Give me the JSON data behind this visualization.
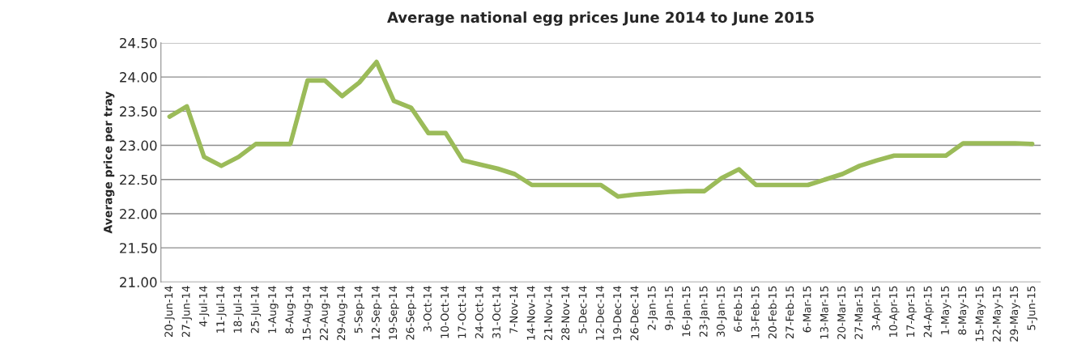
{
  "chart_data": {
    "type": "line",
    "title": "Average national egg prices June 2014 to June 2015",
    "ylabel": "Average price per tray",
    "categories": [
      "20-Jun-14",
      "27-Jun-14",
      "4-Jul-14",
      "11-Jul-14",
      "18-Jul-14",
      "25-Jul-14",
      "1-Aug-14",
      "8-Aug-14",
      "15-Aug-14",
      "22-Aug-14",
      "29-Aug-14",
      "5-Sep-14",
      "12-Sep-14",
      "19-Sep-14",
      "26-Sep-14",
      "3-Oct-14",
      "10-Oct-14",
      "17-Oct-14",
      "24-Oct-14",
      "31-Oct-14",
      "7-Nov-14",
      "14-Nov-14",
      "21-Nov-14",
      "28-Nov-14",
      "5-Dec-14",
      "12-Dec-14",
      "19-Dec-14",
      "26-Dec-14",
      "2-Jan-15",
      "9-Jan-15",
      "16-Jan-15",
      "23-Jan-15",
      "30-Jan-15",
      "6-Feb-15",
      "13-Feb-15",
      "20-Feb-15",
      "27-Feb-15",
      "6-Mar-15",
      "13-Mar-15",
      "20-Mar-15",
      "27-Mar-15",
      "3-Apr-15",
      "10-Apr-15",
      "17-Apr-15",
      "24-Apr-15",
      "1-May-15",
      "8-May-15",
      "15-May-15",
      "22-May-15",
      "29-May-15",
      "5-Jun-15"
    ],
    "series": [
      {
        "color": "#9bbb59",
        "values": [
          23.42,
          23.57,
          22.83,
          22.7,
          22.83,
          23.02,
          23.02,
          23.02,
          23.95,
          23.95,
          23.72,
          23.92,
          24.22,
          23.65,
          23.55,
          23.18,
          23.18,
          22.78,
          22.72,
          22.66,
          22.58,
          22.42,
          22.42,
          22.42,
          22.42,
          22.42,
          22.25,
          22.28,
          22.3,
          22.32,
          22.33,
          22.33,
          22.52,
          22.65,
          22.42,
          22.42,
          22.42,
          22.42,
          22.5,
          22.58,
          22.7,
          22.78,
          22.85,
          22.85,
          22.85,
          22.85,
          23.03,
          23.03,
          23.03,
          23.03,
          23.02
        ]
      }
    ],
    "ylim": [
      21,
      24.5
    ],
    "yticks": [
      {
        "value": 21,
        "label": "21.00"
      },
      {
        "value": 21.5,
        "label": "21.50"
      },
      {
        "value": 22,
        "label": "22.00"
      },
      {
        "value": 22.5,
        "label": "22.50"
      },
      {
        "value": 23,
        "label": "23.00"
      },
      {
        "value": 23.5,
        "label": "23.50"
      },
      {
        "value": 24,
        "label": "24.00"
      },
      {
        "value": 24.5,
        "label": "24.50"
      }
    ],
    "grid": "y",
    "legend": false,
    "marker": "none",
    "line_style": "solid"
  }
}
